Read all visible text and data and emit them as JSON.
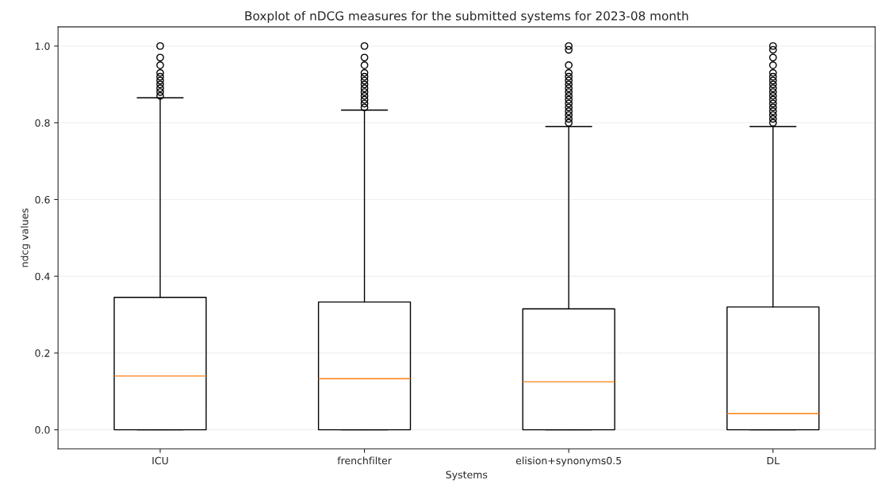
{
  "chart_data": {
    "type": "box",
    "title": "Boxplot of nDCG measures for the submitted systems for 2023-08 month",
    "xlabel": "Systems",
    "ylabel": "ndcg values",
    "categories": [
      "ICU",
      "frenchfilter",
      "elision+synonyms0.5",
      "DL"
    ],
    "boxes": [
      {
        "low": 0,
        "q1": 0,
        "median": 0.14,
        "q3": 0.345,
        "high": 0.865,
        "outliers": [
          0.87,
          0.88,
          0.89,
          0.9,
          0.91,
          0.92,
          0.93,
          0.95,
          0.97,
          1.0
        ]
      },
      {
        "low": 0,
        "q1": 0,
        "median": 0.133,
        "q3": 0.333,
        "high": 0.833,
        "outliers": [
          0.84,
          0.85,
          0.86,
          0.87,
          0.88,
          0.89,
          0.9,
          0.91,
          0.92,
          0.93,
          0.95,
          0.97,
          1.0
        ]
      },
      {
        "low": 0,
        "q1": 0,
        "median": 0.125,
        "q3": 0.315,
        "high": 0.79,
        "outliers": [
          0.8,
          0.81,
          0.82,
          0.83,
          0.84,
          0.85,
          0.86,
          0.87,
          0.88,
          0.89,
          0.9,
          0.91,
          0.92,
          0.93,
          0.95,
          0.99,
          1.0
        ]
      },
      {
        "low": 0,
        "q1": 0,
        "median": 0.042,
        "q3": 0.32,
        "high": 0.79,
        "outliers": [
          0.8,
          0.81,
          0.82,
          0.83,
          0.84,
          0.85,
          0.86,
          0.87,
          0.88,
          0.89,
          0.9,
          0.91,
          0.92,
          0.93,
          0.95,
          0.97,
          0.99,
          1.0
        ]
      }
    ],
    "ylim": [
      -0.05,
      1.05
    ],
    "yticks": [
      {
        "value": 0,
        "label": "0.0"
      },
      {
        "value": 0.2,
        "label": "0.2"
      },
      {
        "value": 0.4,
        "label": "0.4"
      },
      {
        "value": 0.6,
        "label": "0.6"
      },
      {
        "value": 0.8,
        "label": "0.8"
      },
      {
        "value": 1.0,
        "label": "1.0"
      }
    ],
    "grid": "y"
  }
}
